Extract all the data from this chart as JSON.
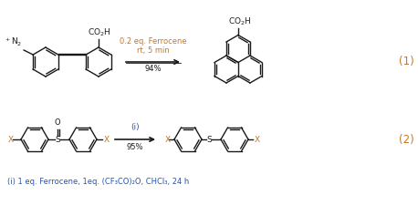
{
  "bg_color": "#ffffff",
  "text_color_dark": "#1a1a1a",
  "text_color_orange": "#c87820",
  "text_color_blue": "#2255bb",
  "fig_width": 4.58,
  "fig_height": 2.25,
  "dpi": 100,
  "rxn1_label": "(1)",
  "rxn2_label": "(2)",
  "rxn1_cond1": "0.2 eq. Ferrocene",
  "rxn1_cond2": "rt, 5 min",
  "rxn1_yield": "94%",
  "rxn2_cond": "(i)",
  "rxn2_yield": "95%",
  "footnote": "(i) 1 eq. Ferrocene, 1eq. (CF₃CO)₂O, CHCl₃, 24 h"
}
